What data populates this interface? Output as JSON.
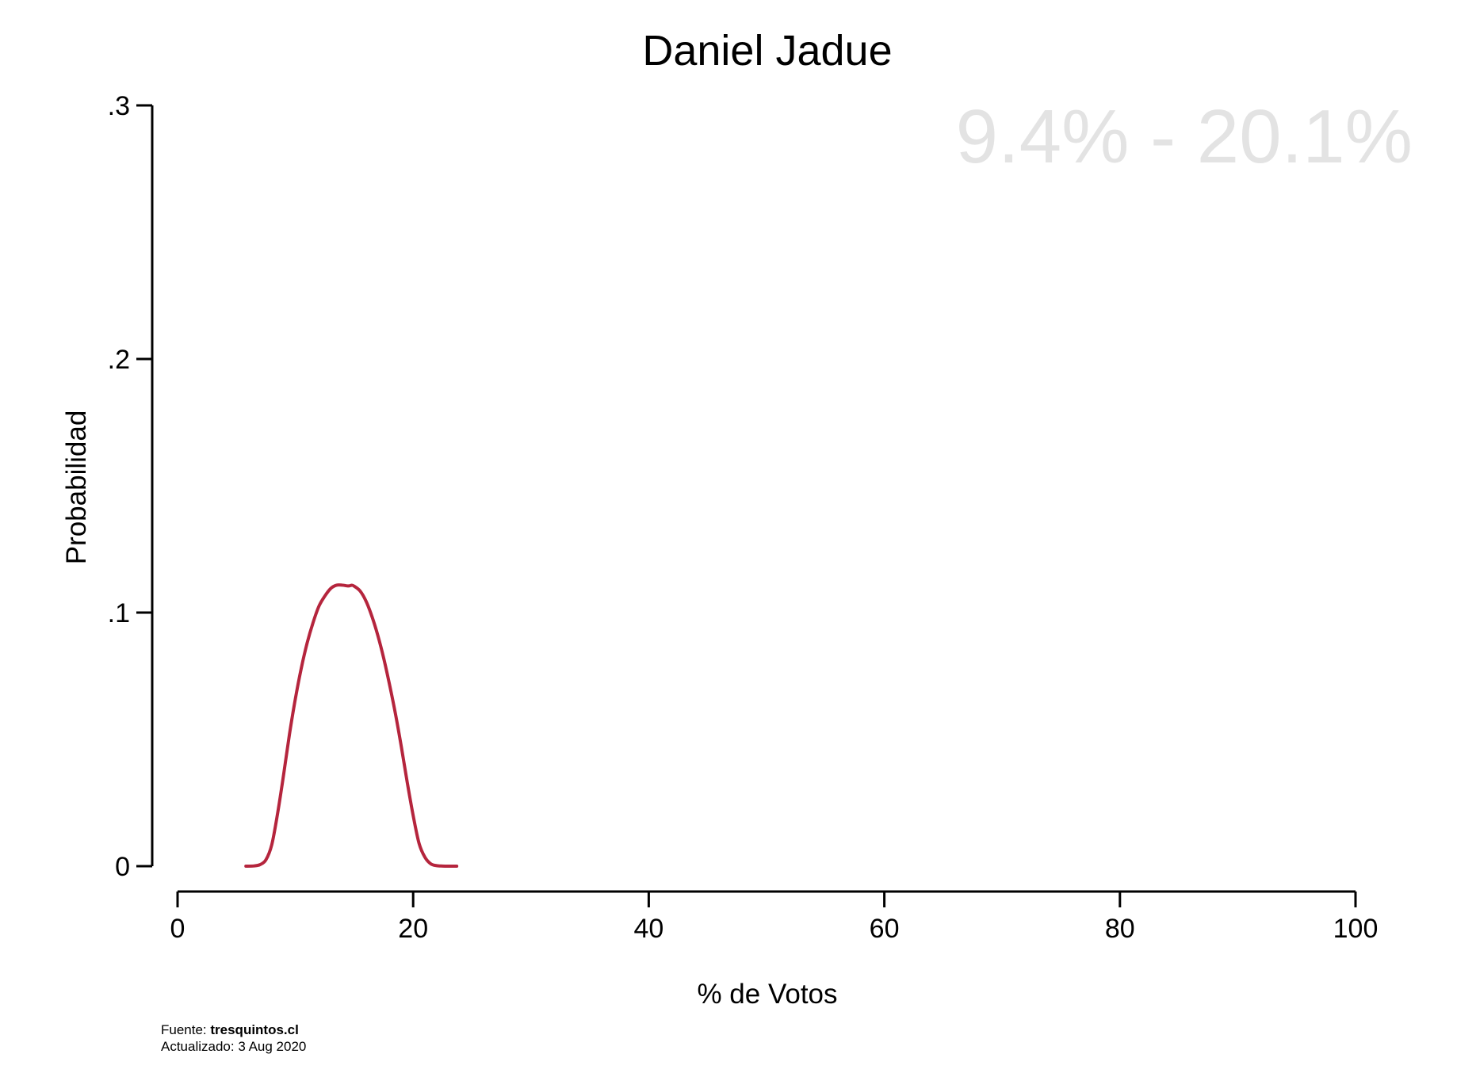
{
  "chart_data": {
    "type": "line",
    "title": "Daniel Jadue",
    "xlabel": "% de Votos",
    "ylabel": "Probabilidad",
    "xlim": [
      0,
      100
    ],
    "ylim": [
      0,
      0.3
    ],
    "x_ticks": [
      {
        "value": 0,
        "label": "0"
      },
      {
        "value": 20,
        "label": "20"
      },
      {
        "value": 40,
        "label": "40"
      },
      {
        "value": 60,
        "label": "60"
      },
      {
        "value": 80,
        "label": "80"
      },
      {
        "value": 100,
        "label": "100"
      }
    ],
    "y_ticks": [
      {
        "value": 0,
        "label": "0"
      },
      {
        "value": 0.1,
        "label": ".1"
      },
      {
        "value": 0.2,
        "label": ".2"
      },
      {
        "value": 0.3,
        "label": ".3"
      }
    ],
    "grid": false,
    "range_annotation": "9.4% - 20.1%",
    "series": [
      {
        "color": "#b5253d",
        "x": [
          5.8,
          6.5,
          7.0,
          7.5,
          8.0,
          8.5,
          9.0,
          9.5,
          10.0,
          10.5,
          11.0,
          11.5,
          12.0,
          12.5,
          13.0,
          13.5,
          14.0,
          14.5,
          14.8,
          15.0,
          15.5,
          16.0,
          16.5,
          17.0,
          17.5,
          18.0,
          18.5,
          19.0,
          19.5,
          20.0,
          20.5,
          21.0,
          21.5,
          22.0,
          22.5,
          23.0,
          23.7
        ],
        "y": [
          0.0,
          0.0001,
          0.0006,
          0.0025,
          0.0085,
          0.021,
          0.036,
          0.052,
          0.066,
          0.078,
          0.088,
          0.096,
          0.1025,
          0.1065,
          0.1095,
          0.1108,
          0.1108,
          0.1105,
          0.1108,
          0.1104,
          0.1085,
          0.1045,
          0.0985,
          0.091,
          0.082,
          0.0715,
          0.06,
          0.047,
          0.033,
          0.02,
          0.009,
          0.0035,
          0.0009,
          0.0002,
          5e-05,
          0.0,
          0.0
        ]
      }
    ]
  },
  "footer": {
    "source_label": "Fuente: ",
    "source_value": "tresquintos.cl",
    "updated": "Actualizado: 3 Aug 2020"
  }
}
